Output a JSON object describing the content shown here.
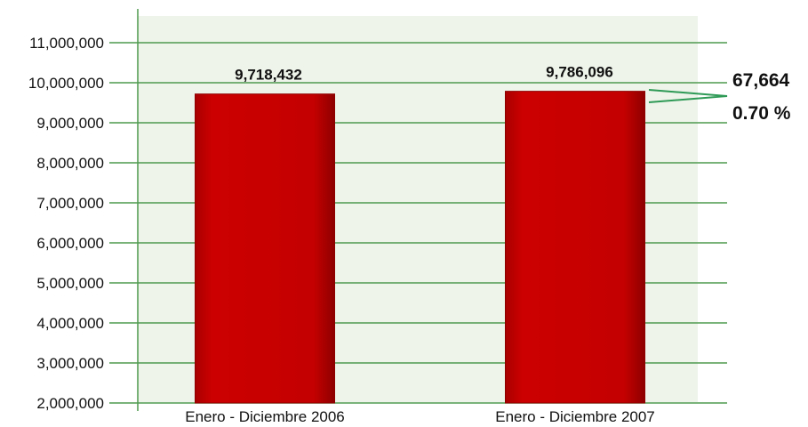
{
  "chart_data": {
    "type": "bar",
    "categories": [
      "Enero - Diciembre 2006",
      "Enero - Diciembre 2007"
    ],
    "values": [
      9718432,
      9786096
    ],
    "value_labels": [
      "9,718,432",
      "9,786,096"
    ],
    "ylim": [
      2000000,
      11000000
    ],
    "yticks": [
      2000000,
      3000000,
      4000000,
      5000000,
      6000000,
      7000000,
      8000000,
      9000000,
      10000000,
      11000000
    ],
    "ytick_labels": [
      "2,000,000",
      "3,000,000",
      "4,000,000",
      "5,000,000",
      "6,000,000",
      "7,000,000",
      "8,000,000",
      "9,000,000",
      "10,000,000",
      "11,000,000"
    ],
    "grid": true,
    "annotation": {
      "difference": "67,664",
      "percent": "0.70 %"
    },
    "colors": {
      "bar": "#c80000",
      "bar_dark": "#8e0000",
      "grid": "#4f9a4f",
      "plot_bg": "#eef4ea",
      "axis": "#4f9a4f",
      "annotation_line": "#2e9a56"
    }
  }
}
